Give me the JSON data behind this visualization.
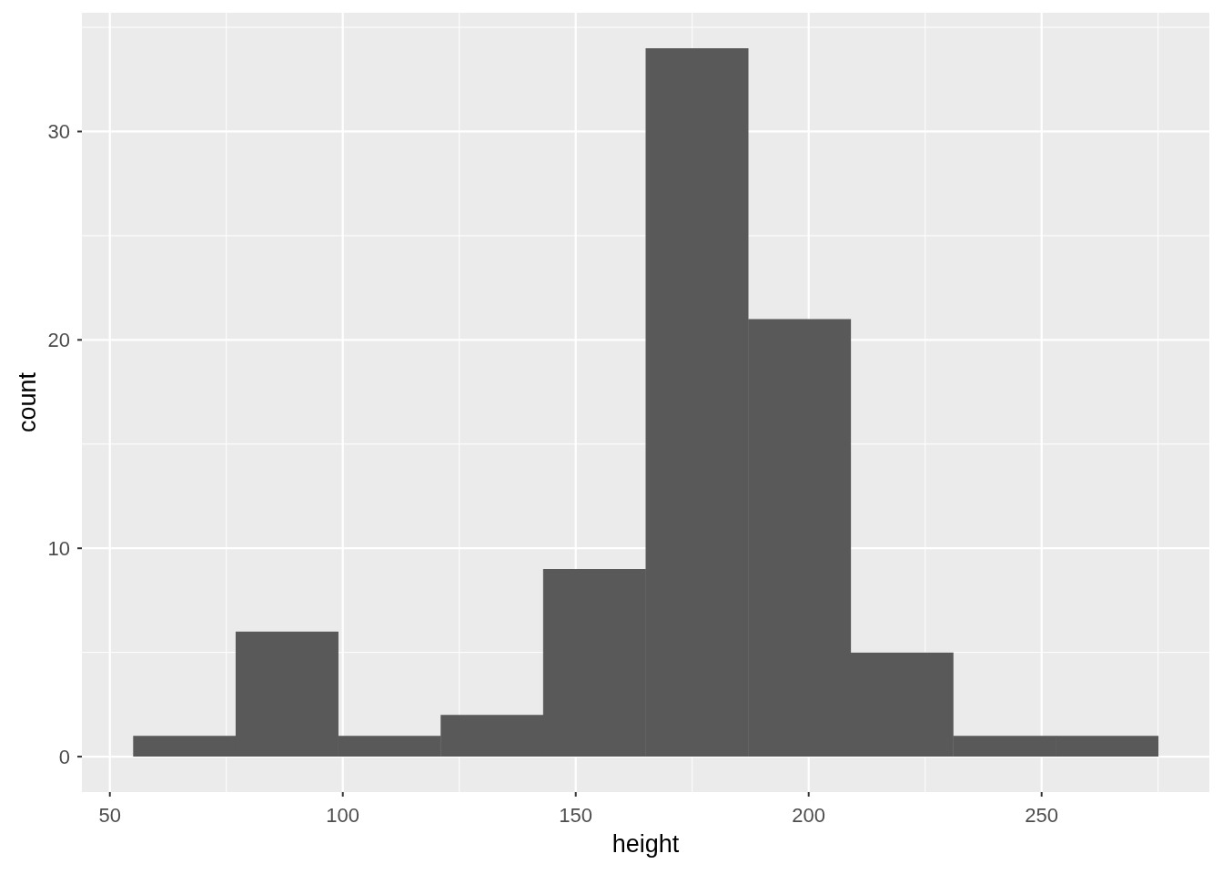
{
  "chart_data": {
    "type": "histogram",
    "xlabel": "height",
    "ylabel": "count",
    "bins": [
      55,
      77,
      99,
      121,
      143,
      165,
      187,
      209,
      231,
      253,
      275
    ],
    "values": [
      1,
      6,
      1,
      2,
      9,
      34,
      21,
      5,
      1,
      1
    ],
    "color": "#595959",
    "xlim": [
      44,
      286
    ],
    "xticks": [
      50,
      100,
      150,
      200,
      250
    ],
    "ylim": [
      -1.7,
      35.7
    ],
    "yticks": [
      0,
      10,
      20,
      30
    ],
    "grid": true
  }
}
